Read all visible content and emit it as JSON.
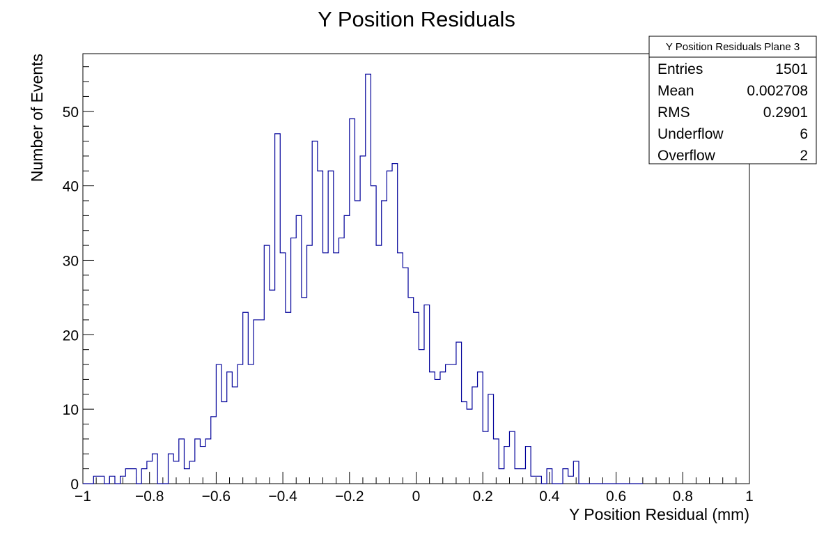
{
  "chart_data": {
    "type": "bar",
    "title": "Y Position Residuals",
    "xlabel": "Y Position Residual (mm)",
    "ylabel": "Number of Events",
    "xlim": [
      -1,
      1
    ],
    "ylim": [
      0,
      57.75
    ],
    "bin_width": 0.016,
    "x_ticks": [
      -1,
      -0.8,
      -0.6,
      -0.4,
      -0.2,
      0,
      0.2,
      0.4,
      0.6,
      0.8,
      1
    ],
    "x_tick_labels": [
      "−1",
      "−0.8",
      "−0.6",
      "−0.4",
      "−0.2",
      "0",
      "0.2",
      "0.4",
      "0.6",
      "0.8",
      "1"
    ],
    "y_ticks": [
      0,
      10,
      20,
      30,
      40,
      50
    ],
    "y_tick_labels": [
      "0",
      "10",
      "20",
      "30",
      "40",
      "50"
    ],
    "line_color": "#000099",
    "values": [
      0,
      0,
      1,
      1,
      0,
      1,
      0,
      1,
      2,
      2,
      0,
      2,
      3,
      4,
      0,
      0,
      4,
      3,
      6,
      2,
      3,
      6,
      5,
      6,
      9,
      16,
      11,
      15,
      13,
      16,
      23,
      16,
      22,
      22,
      32,
      26,
      47,
      31,
      23,
      33,
      36,
      25,
      32,
      46,
      42,
      31,
      42,
      31,
      33,
      36,
      49,
      38,
      44,
      55,
      40,
      32,
      38,
      42,
      43,
      31,
      29,
      25,
      23,
      18,
      24,
      15,
      14,
      15,
      16,
      16,
      19,
      11,
      10,
      13,
      15,
      7,
      12,
      6,
      2,
      5,
      7,
      2,
      2,
      5,
      1,
      1,
      0,
      2,
      0,
      0,
      2,
      1,
      3,
      0,
      0,
      0,
      0,
      0,
      0,
      0,
      0,
      0,
      0,
      0,
      0
    ],
    "stats": {
      "name": "Y Position Residuals Plane 3",
      "rows": [
        {
          "label": "Entries",
          "value": "1501"
        },
        {
          "label": "Mean",
          "value": "0.002708"
        },
        {
          "label": "RMS",
          "value": "0.2901"
        },
        {
          "label": "Underflow",
          "value": "6"
        },
        {
          "label": "Overflow",
          "value": "2"
        }
      ]
    }
  }
}
